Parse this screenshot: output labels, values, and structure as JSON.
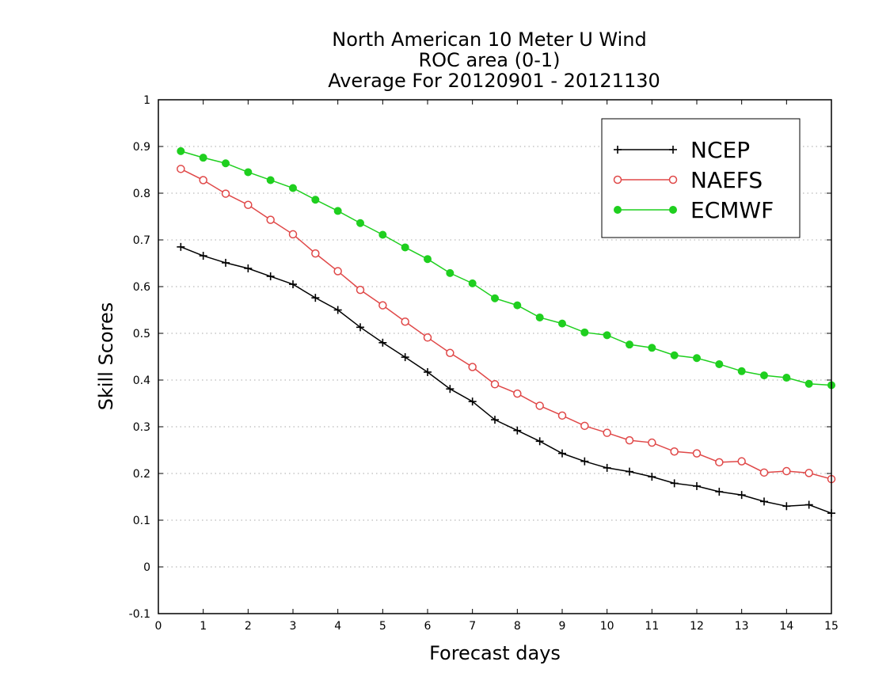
{
  "chart_data": {
    "type": "line",
    "title": [
      "North American 10 Meter U Wind",
      "ROC area (0-1)",
      "Average For 20120901 - 20121130"
    ],
    "xlabel": "Forecast days",
    "ylabel": "Skill Scores",
    "xlim": [
      0,
      15
    ],
    "ylim": [
      -0.1,
      1
    ],
    "xticks": [
      0,
      1,
      2,
      3,
      4,
      5,
      6,
      7,
      8,
      9,
      10,
      11,
      12,
      13,
      14,
      15
    ],
    "xtick_labels": [
      "0",
      "1",
      "2",
      "3",
      "4",
      "5",
      "6",
      "7",
      "8",
      "9",
      "10",
      "11",
      "12",
      "13",
      "14",
      "15"
    ],
    "yticks": [
      -0.1,
      0,
      0.1,
      0.2,
      0.3,
      0.4,
      0.5,
      0.6,
      0.7,
      0.8,
      0.9,
      1
    ],
    "ytick_labels": [
      "-0.1",
      "0",
      "0.1",
      "0.2",
      "0.3",
      "0.4",
      "0.5",
      "0.6",
      "0.7",
      "0.8",
      "0.9",
      "1"
    ],
    "grid": "horizontal-dotted",
    "legend_position": "top-right",
    "x": [
      0.5,
      1,
      1.5,
      2,
      2.5,
      3,
      3.5,
      4,
      4.5,
      5,
      5.5,
      6,
      6.5,
      7,
      7.5,
      8,
      8.5,
      9,
      9.5,
      10,
      10.5,
      11,
      11.5,
      12,
      12.5,
      13,
      13.5,
      14,
      14.5,
      15
    ],
    "series": [
      {
        "name": "NCEP",
        "color": "#000000",
        "marker": "plus",
        "values": [
          0.685,
          0.666,
          0.651,
          0.639,
          0.622,
          0.605,
          0.576,
          0.55,
          0.513,
          0.48,
          0.449,
          0.417,
          0.381,
          0.354,
          0.315,
          0.292,
          0.269,
          0.243,
          0.226,
          0.212,
          0.204,
          0.193,
          0.179,
          0.173,
          0.161,
          0.154,
          0.14,
          0.13,
          0.133,
          0.115
        ]
      },
      {
        "name": "NAEFS",
        "color": "#e04848",
        "marker": "open-circle",
        "values": [
          0.852,
          0.828,
          0.799,
          0.775,
          0.743,
          0.712,
          0.671,
          0.633,
          0.593,
          0.56,
          0.525,
          0.491,
          0.458,
          0.428,
          0.391,
          0.371,
          0.345,
          0.324,
          0.302,
          0.287,
          0.271,
          0.266,
          0.247,
          0.243,
          0.224,
          0.226,
          0.202,
          0.205,
          0.201,
          0.188
        ]
      },
      {
        "name": "ECMWF",
        "color": "#1fcf1f",
        "marker": "filled-circle",
        "values": [
          0.89,
          0.876,
          0.864,
          0.845,
          0.828,
          0.811,
          0.786,
          0.762,
          0.736,
          0.711,
          0.684,
          0.659,
          0.629,
          0.607,
          0.575,
          0.56,
          0.534,
          0.521,
          0.502,
          0.496,
          0.476,
          0.469,
          0.453,
          0.447,
          0.434,
          0.419,
          0.41,
          0.405,
          0.392,
          0.389
        ]
      }
    ]
  }
}
